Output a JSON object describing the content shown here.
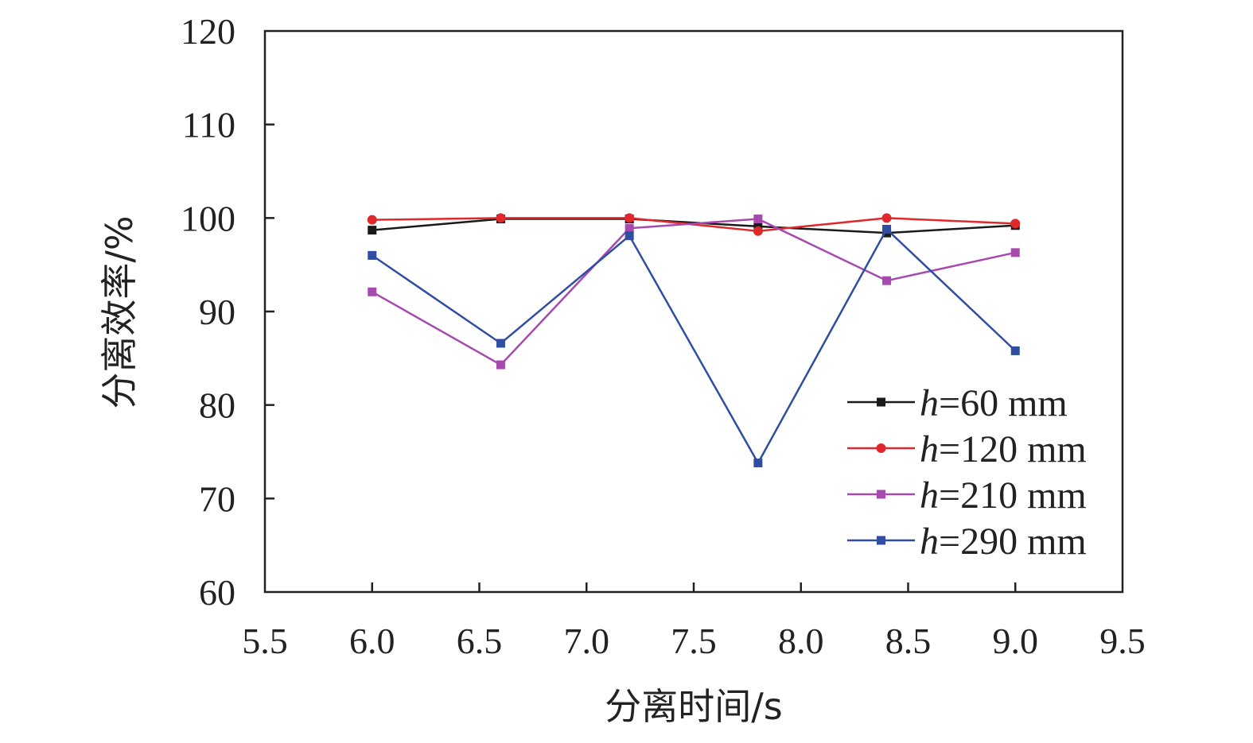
{
  "chart_data": {
    "type": "line",
    "title": "",
    "xlabel": "分离时间/s",
    "ylabel": "分离效率/%",
    "xlim": [
      5.5,
      9.5
    ],
    "ylim": [
      60,
      120
    ],
    "xticks": [
      "5.5",
      "6.0",
      "6.5",
      "7.0",
      "7.5",
      "8.0",
      "8.5",
      "9.0",
      "9.5"
    ],
    "yticks": [
      "60",
      "70",
      "80",
      "90",
      "100",
      "110",
      "120"
    ],
    "grid": false,
    "legend_position": "lower-right",
    "x": [
      6.0,
      6.6,
      7.2,
      7.8,
      8.4,
      9.0
    ],
    "series": [
      {
        "name": "60 mm",
        "prefix": "h",
        "color": "#1a1a1a",
        "marker": "square",
        "values": [
          98.7,
          99.9,
          99.9,
          99.1,
          98.4,
          99.2
        ]
      },
      {
        "name": "120 mm",
        "prefix": "h",
        "color": "#e0282b",
        "marker": "circle",
        "values": [
          99.8,
          100.0,
          100.0,
          98.6,
          100.0,
          99.4
        ]
      },
      {
        "name": "210 mm",
        "prefix": "h",
        "color": "#a74aaf",
        "marker": "square",
        "values": [
          92.1,
          84.3,
          98.9,
          99.9,
          93.3,
          96.3
        ]
      },
      {
        "name": "290 mm",
        "prefix": "h",
        "color": "#2f4ea3",
        "marker": "square",
        "values": [
          96.0,
          86.6,
          98.1,
          73.8,
          98.8,
          85.8
        ]
      }
    ]
  }
}
